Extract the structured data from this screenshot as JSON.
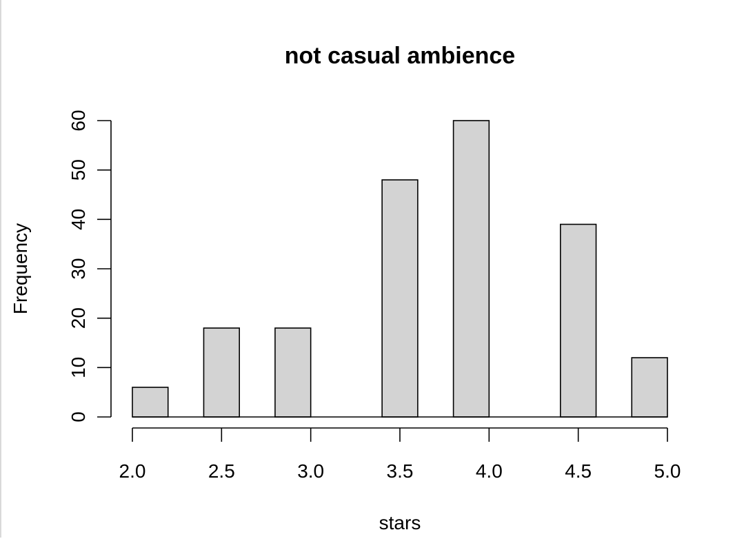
{
  "chart_data": {
    "type": "bar",
    "title": "not casual ambience",
    "xlabel": "stars",
    "ylabel": "Frequency",
    "bars": [
      {
        "x0": 2.0,
        "x1": 2.2,
        "value": 6
      },
      {
        "x0": 2.4,
        "x1": 2.6,
        "value": 18
      },
      {
        "x0": 2.8,
        "x1": 3.0,
        "value": 18
      },
      {
        "x0": 3.4,
        "x1": 3.6,
        "value": 48
      },
      {
        "x0": 3.8,
        "x1": 4.0,
        "value": 60
      },
      {
        "x0": 4.4,
        "x1": 4.6,
        "value": 39
      },
      {
        "x0": 4.8,
        "x1": 5.0,
        "value": 12
      }
    ],
    "xlim": [
      2.0,
      5.0
    ],
    "ylim": [
      0,
      60
    ],
    "x_ticks": [
      {
        "value": 2.0,
        "label": "2.0"
      },
      {
        "value": 2.5,
        "label": "2.5"
      },
      {
        "value": 3.0,
        "label": "3.0"
      },
      {
        "value": 3.5,
        "label": "3.5"
      },
      {
        "value": 4.0,
        "label": "4.0"
      },
      {
        "value": 4.5,
        "label": "4.5"
      },
      {
        "value": 5.0,
        "label": "5.0"
      }
    ],
    "y_ticks": [
      {
        "value": 0,
        "label": "0"
      },
      {
        "value": 10,
        "label": "10"
      },
      {
        "value": 20,
        "label": "20"
      },
      {
        "value": 30,
        "label": "30"
      },
      {
        "value": 40,
        "label": "40"
      },
      {
        "value": 50,
        "label": "50"
      },
      {
        "value": 60,
        "label": "60"
      }
    ],
    "grid": false,
    "bar_fill": "#d3d3d3",
    "bar_stroke": "#000000"
  }
}
